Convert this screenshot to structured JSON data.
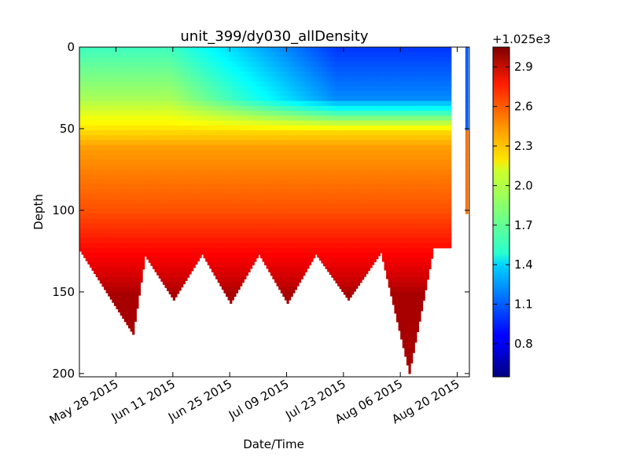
{
  "chart_data": {
    "type": "heatmap",
    "title": "unit_399/dy030_allDensity",
    "xlabel": "Date/Time",
    "ylabel": "Depth",
    "x_axis": {
      "type": "date",
      "range": [
        "2015-05-19",
        "2015-08-23"
      ],
      "tick_labels": [
        "May 28 2015",
        "Jun 11 2015",
        "Jun 25 2015",
        "Jul 09 2015",
        "Jul 23 2015",
        "Aug 06 2015",
        "Aug 20 2015"
      ],
      "tick_dates": [
        "2015-05-28",
        "2015-06-11",
        "2015-06-25",
        "2015-07-09",
        "2015-07-23",
        "2015-08-06",
        "2015-08-20"
      ]
    },
    "y_axis": {
      "inverted": true,
      "range": [
        0,
        202
      ],
      "tick_labels": [
        "0",
        "50",
        "100",
        "150",
        "200"
      ],
      "ticks": [
        0,
        50,
        100,
        150,
        200
      ]
    },
    "colorbar": {
      "offset_label": "+1.025e3",
      "range": [
        0.55,
        3.05
      ],
      "tick_labels": [
        "0.8",
        "1.1",
        "1.4",
        "1.7",
        "2.0",
        "2.3",
        "2.6",
        "2.9"
      ],
      "ticks": [
        0.8,
        1.1,
        1.4,
        1.7,
        2.0,
        2.3,
        2.6,
        2.9
      ],
      "colormap": "jet"
    },
    "density_at_depth": {
      "depths": [
        0,
        30,
        50,
        60,
        80,
        100,
        120,
        140,
        150
      ],
      "early_period": [
        1.65,
        1.9,
        2.2,
        2.35,
        2.45,
        2.55,
        2.7,
        2.85,
        2.95
      ],
      "late_period": [
        1.0,
        1.2,
        2.2,
        2.35,
        2.45,
        2.55,
        2.7,
        2.85,
        2.95
      ]
    },
    "max_depth_cycles": {
      "peak_dates": [
        "2015-06-01",
        "2015-06-11",
        "2015-06-25",
        "2015-07-09",
        "2015-07-24",
        "2015-08-08"
      ],
      "peak_depths": [
        176,
        155,
        157,
        157,
        155,
        200
      ],
      "trough_date_first": "2015-05-19",
      "trough_depth_first": 125,
      "trough_dates": [
        "2015-06-04",
        "2015-06-18",
        "2015-07-02",
        "2015-07-16",
        "2015-08-01",
        "2015-08-14"
      ],
      "trough_depths": [
        128,
        127,
        127,
        127,
        126,
        123
      ],
      "end_date_main": "2015-08-18"
    },
    "isolated_profile": {
      "date": "2015-08-22",
      "min_depth": 0,
      "max_depth": 102
    },
    "grid": false,
    "legend": "none"
  }
}
